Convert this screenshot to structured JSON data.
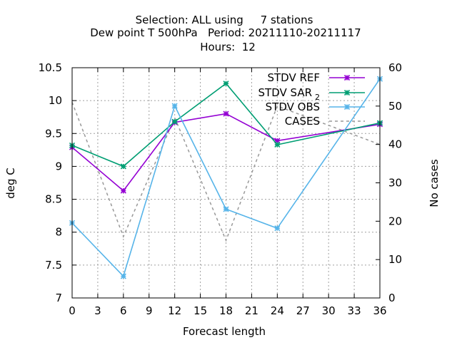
{
  "chart_data": {
    "type": "line",
    "title_lines": [
      "Selection: ALL using     7 stations",
      "Dew point T 500hPa   Period: 20211110-20211117",
      "Hours:  12"
    ],
    "xlabel": "Forecast length",
    "ylabel": "deg C",
    "y2label": "No cases",
    "xlim": [
      0,
      36
    ],
    "ylim": [
      7,
      10.5
    ],
    "y2lim": [
      0,
      60
    ],
    "xticks": [
      "0",
      "3",
      "6",
      "9",
      "12",
      "15",
      "18",
      "21",
      "24",
      "27",
      "30",
      "33",
      "36"
    ],
    "yticks": [
      "7",
      "7.5",
      "8",
      "8.5",
      "9",
      "9.5",
      "10",
      "10.5"
    ],
    "y2ticks": [
      "0",
      "10",
      "20",
      "30",
      "40",
      "50",
      "60"
    ],
    "grid": true,
    "legend_position": "top-right",
    "x": [
      0,
      6,
      12,
      18,
      24,
      36
    ],
    "series": [
      {
        "name": "STDV REF",
        "axis": "y",
        "color": "#9400d3",
        "marker": "x",
        "values": [
          9.29,
          8.63,
          9.67,
          9.8,
          9.39,
          9.64
        ]
      },
      {
        "name": "STDV SAR",
        "name_sub": "2",
        "axis": "y",
        "color": "#009e73",
        "marker": "x",
        "values": [
          9.32,
          9.0,
          9.68,
          10.26,
          9.33,
          9.66
        ]
      },
      {
        "name": "STDV OBS",
        "axis": "y",
        "color": "#56b4e9",
        "marker": "x",
        "values": [
          8.14,
          7.33,
          9.92,
          8.35,
          8.06,
          10.33
        ]
      },
      {
        "name": "CASES",
        "axis": "y2",
        "color": "#999999",
        "dash": true,
        "marker": "none",
        "values": [
          51,
          16,
          47,
          15,
          50,
          40
        ]
      }
    ]
  }
}
